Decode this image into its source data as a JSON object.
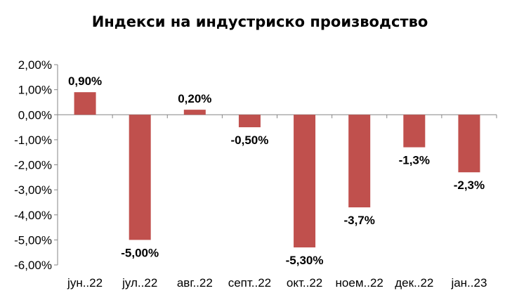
{
  "chart_data": {
    "type": "bar",
    "title": "Индекси на индустриско производство",
    "categories": [
      "јун..22",
      "јул..22",
      "авг..22",
      "септ..22",
      "окт..22",
      "ноем..22",
      "дек..22",
      "јан..23"
    ],
    "values": [
      0.9,
      -5.0,
      0.2,
      -0.5,
      -5.3,
      -3.7,
      -1.3,
      -2.3
    ],
    "data_labels": [
      "0,90%",
      "-5,00%",
      "0,20%",
      "-0,50%",
      "-5,30%",
      "-3,7%",
      "-1,3%",
      "-2,3%"
    ],
    "ylim": [
      -6,
      2
    ],
    "yticks": [
      2,
      1,
      0,
      -1,
      -2,
      -3,
      -4,
      -5,
      -6
    ],
    "ytick_labels": [
      "2,00%",
      "1,00%",
      "0,00%",
      "-1,00%",
      "-2,00%",
      "-3,00%",
      "-4,00%",
      "-5,00%",
      "-6,00%"
    ],
    "xlabel": "",
    "ylabel": "",
    "grid": false,
    "legend": "none",
    "bar_color": "#c0504d"
  }
}
